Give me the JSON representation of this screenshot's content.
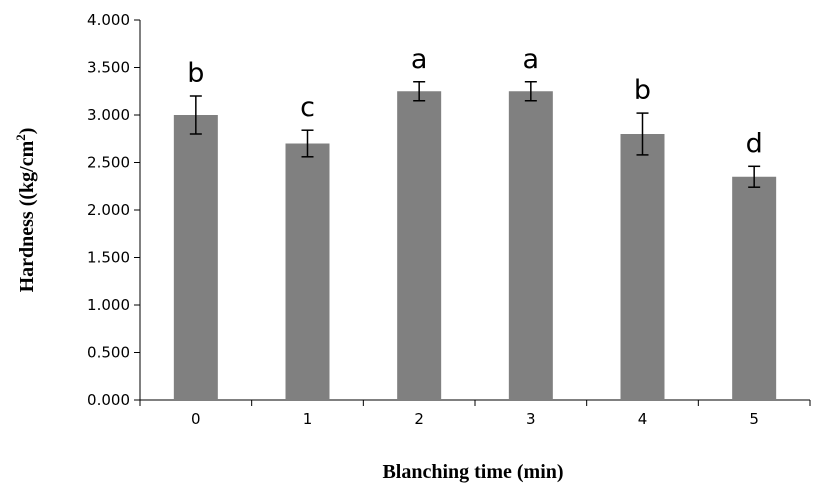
{
  "chart_data": {
    "type": "bar",
    "title": "",
    "xlabel": "Blanching time (min)",
    "ylabel_main": "Hardness ((kg/cm",
    "ylabel_sup": "2",
    "ylabel_end": ")",
    "categories": [
      "0",
      "1",
      "2",
      "3",
      "4",
      "5"
    ],
    "values": [
      3.0,
      2.7,
      3.25,
      3.25,
      2.8,
      2.35
    ],
    "errors": [
      0.2,
      0.14,
      0.1,
      0.1,
      0.22,
      0.11
    ],
    "significance": [
      "b",
      "c",
      "a",
      "a",
      "b",
      "d"
    ],
    "yticks": [
      "0.000",
      "0.500",
      "1.000",
      "1.500",
      "2.000",
      "2.500",
      "3.000",
      "3.500",
      "4.000"
    ],
    "ylim": [
      0,
      4
    ],
    "bar_color": "#808080",
    "grid": false,
    "legend": "none"
  }
}
